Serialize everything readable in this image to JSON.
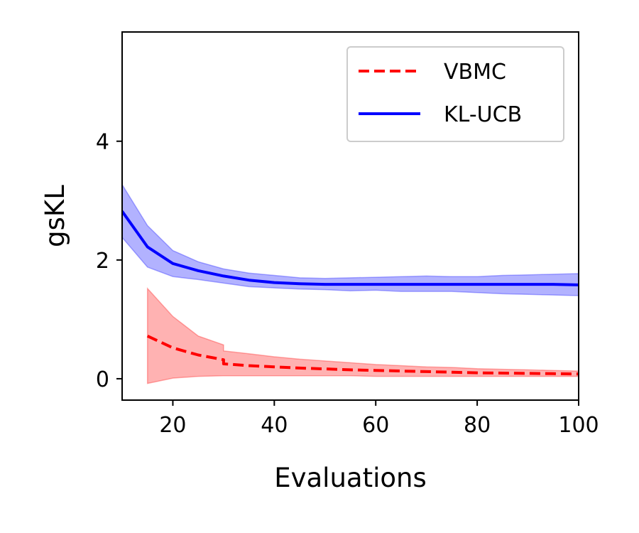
{
  "chart_data": {
    "type": "line",
    "xlabel": "Evaluations",
    "ylabel": "gsKL",
    "xlim": [
      10,
      100
    ],
    "ylim": [
      -0.36,
      5.84
    ],
    "xticks": [
      20,
      40,
      60,
      80,
      100
    ],
    "yticks": [
      0,
      2,
      4
    ],
    "grid": false,
    "legend_position": "top-right",
    "series": [
      {
        "name": "VBMC",
        "color": "#ff0000",
        "line_style": "dashed",
        "x": [
          15,
          20,
          25,
          30,
          30,
          35,
          40,
          45,
          50,
          55,
          60,
          65,
          70,
          75,
          80,
          85,
          90,
          95,
          100
        ],
        "y": [
          0.72,
          0.52,
          0.4,
          0.32,
          0.25,
          0.22,
          0.2,
          0.18,
          0.165,
          0.15,
          0.14,
          0.13,
          0.12,
          0.11,
          0.1,
          0.095,
          0.09,
          0.085,
          0.08
        ],
        "band_low": [
          -0.08,
          0.01,
          0.04,
          0.05,
          0.05,
          0.05,
          0.05,
          0.05,
          0.05,
          0.05,
          0.04,
          0.04,
          0.04,
          0.04,
          0.04,
          0.04,
          0.04,
          0.04,
          0.04
        ],
        "band_high": [
          1.52,
          1.05,
          0.72,
          0.57,
          0.47,
          0.42,
          0.37,
          0.33,
          0.3,
          0.27,
          0.24,
          0.22,
          0.2,
          0.19,
          0.17,
          0.16,
          0.15,
          0.14,
          0.13
        ]
      },
      {
        "name": "KL-UCB",
        "color": "#0000ff",
        "line_style": "solid",
        "x": [
          10,
          15,
          20,
          25,
          30,
          35,
          40,
          45,
          50,
          55,
          60,
          65,
          70,
          75,
          80,
          85,
          90,
          95,
          100
        ],
        "y": [
          2.82,
          2.22,
          1.94,
          1.82,
          1.73,
          1.66,
          1.62,
          1.6,
          1.59,
          1.59,
          1.59,
          1.59,
          1.59,
          1.59,
          1.59,
          1.59,
          1.59,
          1.59,
          1.58
        ],
        "band_low": [
          2.38,
          1.88,
          1.72,
          1.67,
          1.61,
          1.55,
          1.53,
          1.51,
          1.5,
          1.48,
          1.49,
          1.47,
          1.47,
          1.47,
          1.45,
          1.43,
          1.42,
          1.41,
          1.4
        ],
        "band_high": [
          3.27,
          2.58,
          2.16,
          1.97,
          1.85,
          1.78,
          1.74,
          1.7,
          1.69,
          1.7,
          1.71,
          1.72,
          1.73,
          1.72,
          1.72,
          1.74,
          1.75,
          1.76,
          1.77
        ]
      }
    ]
  }
}
